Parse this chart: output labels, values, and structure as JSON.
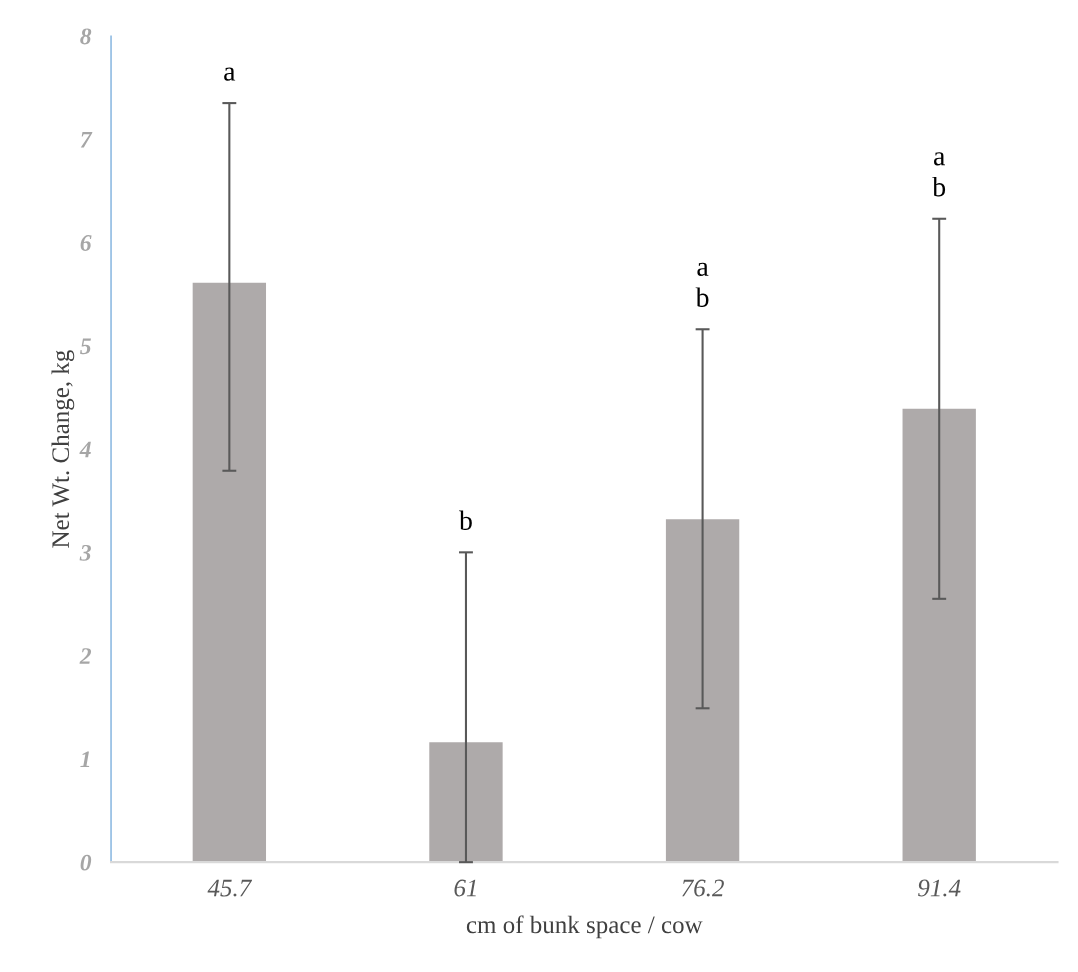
{
  "chart_data": {
    "type": "bar",
    "xlabel": "cm of bunk space / cow",
    "ylabel": "Net Wt. Change, kg",
    "categories": [
      "45.7",
      "61",
      "76.2",
      "91.4"
    ],
    "values": [
      5.61,
      1.16,
      3.32,
      4.39
    ],
    "errors": [
      [
        3.79,
        7.35
      ],
      [
        0,
        3.0
      ],
      [
        1.49,
        5.16
      ],
      [
        2.55,
        6.23
      ]
    ],
    "color": "#aeaaaa",
    "ylim": [
      0,
      8
    ],
    "yticks": [
      0,
      1,
      2,
      3,
      4,
      5,
      6,
      7,
      8
    ],
    "grid": false,
    "annotations": [
      "a",
      "b",
      "a\nb",
      "a\nb"
    ]
  }
}
